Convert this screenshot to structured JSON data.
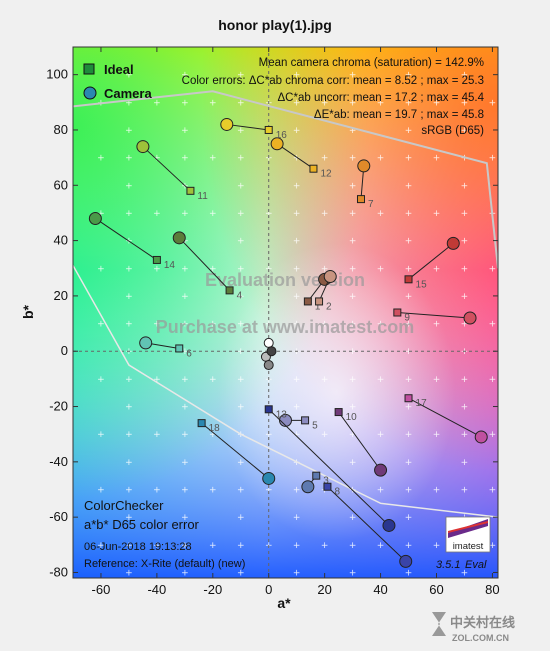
{
  "chart_data": {
    "type": "scatter",
    "title": "honor play(1).jpg",
    "xlabel": "a*",
    "ylabel": "b*",
    "xlim": [
      -70,
      82
    ],
    "ylim": [
      -82,
      110
    ],
    "x_ticks": [
      -60,
      -40,
      -20,
      0,
      20,
      40,
      60,
      80
    ],
    "y_ticks": [
      -80,
      -60,
      -40,
      -20,
      0,
      20,
      40,
      60,
      80,
      100
    ],
    "legend": {
      "placement": "top-left",
      "entries": [
        "Ideal",
        "Camera"
      ]
    },
    "stats_lines": [
      "Mean camera chroma (saturation) = 142.9%",
      "Color errors:  ΔC*ab chroma corr:  mean = 8.52 ;   max = 25.3",
      "ΔC*ab uncorr:  mean = 17.2 ;   max = 45.4",
      "ΔE*ab:  mean = 19.7 ;   max = 45.8",
      "sRGB (D65)"
    ],
    "watermark": [
      "Evaluation version",
      "Purchase at www.imatest.com"
    ],
    "info": {
      "title_line1": "ColorChecker",
      "title_line2": "a*b* D65 color error",
      "date": "06-Jun-2018 19:13:28",
      "reference": "Reference:  X-Rite (default) (new)"
    },
    "badge": {
      "logo_text": "imatest",
      "version": "3.5.1",
      "mode": "Eval"
    },
    "patches": [
      {
        "label": "1",
        "ideal": [
          14,
          18
        ],
        "camera": [
          20,
          26
        ],
        "color": "#8a5a44"
      },
      {
        "label": "2",
        "ideal": [
          18,
          18
        ],
        "camera": [
          22,
          27
        ],
        "color": "#c89480"
      },
      {
        "label": "3",
        "ideal": [
          17,
          -45
        ],
        "camera": [
          14,
          -49
        ],
        "color": "#5e7ab0"
      },
      {
        "label": "4",
        "ideal": [
          -14,
          22
        ],
        "camera": [
          -32,
          41
        ],
        "color": "#5b7c3a"
      },
      {
        "label": "5",
        "ideal": [
          13,
          -25
        ],
        "camera": [
          6,
          -25
        ],
        "color": "#8c8cc0"
      },
      {
        "label": "6",
        "ideal": [
          -32,
          1
        ],
        "camera": [
          -44,
          3
        ],
        "color": "#61c4b4"
      },
      {
        "label": "7",
        "ideal": [
          33,
          55
        ],
        "camera": [
          34,
          67
        ],
        "color": "#e08a2a"
      },
      {
        "label": "8",
        "ideal": [
          21,
          -49
        ],
        "camera": [
          49,
          -76
        ],
        "color": "#3a44a8"
      },
      {
        "label": "9",
        "ideal": [
          46,
          14
        ],
        "camera": [
          72,
          12
        ],
        "color": "#d05060"
      },
      {
        "label": "10",
        "ideal": [
          25,
          -22
        ],
        "camera": [
          40,
          -43
        ],
        "color": "#703a78"
      },
      {
        "label": "11",
        "ideal": [
          -28,
          58
        ],
        "camera": [
          -45,
          74
        ],
        "color": "#9ec23a"
      },
      {
        "label": "12",
        "ideal": [
          16,
          66
        ],
        "camera": [
          3,
          75
        ],
        "color": "#ecb224"
      },
      {
        "label": "13",
        "ideal": [
          0,
          -21
        ],
        "camera": [
          43,
          -63
        ],
        "color": "#2a3690"
      },
      {
        "label": "14",
        "ideal": [
          -40,
          33
        ],
        "camera": [
          -62,
          48
        ],
        "color": "#4a9a48"
      },
      {
        "label": "15",
        "ideal": [
          50,
          26
        ],
        "camera": [
          66,
          39
        ],
        "color": "#c03a36"
      },
      {
        "label": "16",
        "ideal": [
          0,
          80
        ],
        "camera": [
          -15,
          82
        ],
        "color": "#e8cc2a"
      },
      {
        "label": "17",
        "ideal": [
          50,
          -17
        ],
        "camera": [
          76,
          -31
        ],
        "color": "#c050a0"
      },
      {
        "label": "18",
        "ideal": [
          -24,
          -26
        ],
        "camera": [
          0,
          -46
        ],
        "color": "#2a88b0"
      }
    ]
  },
  "footer_watermark": {
    "brand": "中关村在线",
    "url": "ZOL.COM.CN"
  }
}
